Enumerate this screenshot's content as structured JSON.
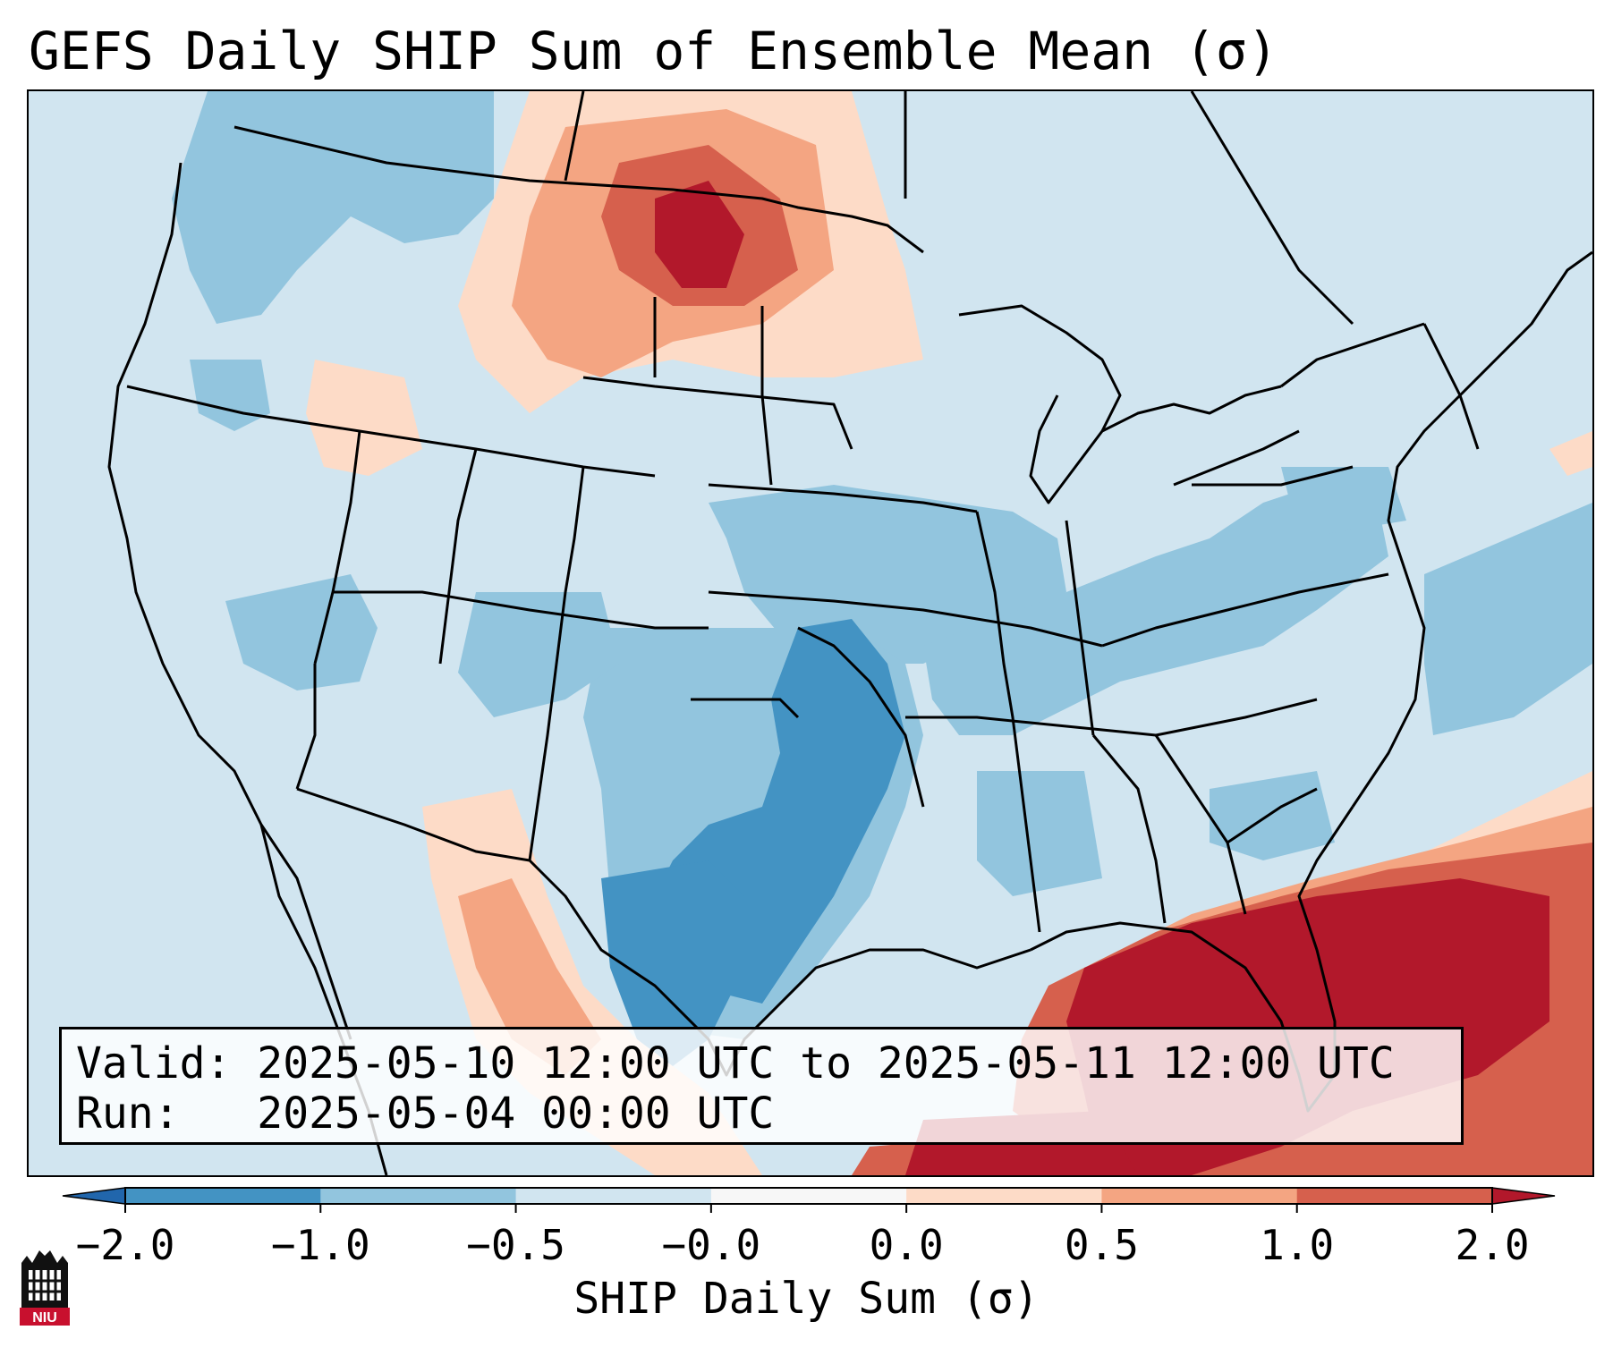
{
  "title": "GEFS Daily SHIP Sum of Ensemble Mean (σ)",
  "info": {
    "valid_label": "Valid:",
    "valid_value": "2025-05-10 12:00 UTC to 2025-05-11 12:00 UTC",
    "run_label": "Run:",
    "run_value": "2025-05-04 00:00 UTC"
  },
  "colorbar": {
    "label": "SHIP Daily Sum (σ)",
    "ticks": [
      "−2.0",
      "−1.0",
      "−0.5",
      "−0.0",
      "0.0",
      "0.5",
      "1.0",
      "2.0"
    ],
    "colors": [
      "#2166ac",
      "#4393c3",
      "#92c5de",
      "#d1e5f0",
      "#f7f7f7",
      "#fddbc7",
      "#f4a582",
      "#d6604d",
      "#b2182b"
    ],
    "extend": "both"
  },
  "logo": {
    "text": "NIU",
    "icon": "niu-castle-logo-icon"
  },
  "map": {
    "projection": "lambert-conformal",
    "region": "CONUS",
    "overlays": [
      "state-borders",
      "coastlines",
      "country-borders"
    ],
    "background_color": "#d1e5f0",
    "regions_highlighted": [
      "negative anomaly over southern Plains and Texas",
      "positive anomaly over Gulf of Mexico, Florida and western Atlantic",
      "positive anomaly over northern Rockies and Montana"
    ]
  }
}
